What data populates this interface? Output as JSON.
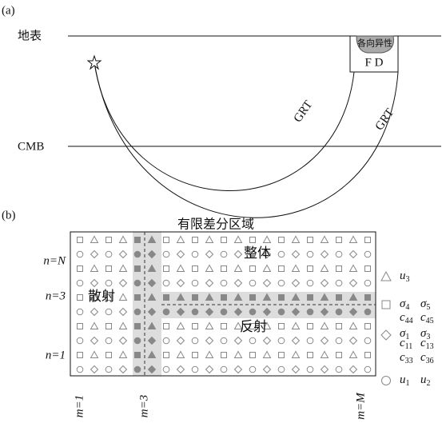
{
  "panel_a": {
    "label": "(a)",
    "surface": "地表",
    "cmb": "CMB",
    "anisotropy": "各向异性",
    "fd": "F D",
    "rays": [
      "GRT",
      "GRT"
    ]
  },
  "panel_b": {
    "label": "(b)",
    "title": "有限差分区域",
    "rows": [
      "n=N",
      "n=3",
      "n=1"
    ],
    "cols": [
      "m=1",
      "m=3",
      "m=M"
    ],
    "regions": [
      "整体",
      "散射",
      "反射"
    ],
    "legend": [
      [
        {
          "base": "u",
          "sub": "3"
        }
      ],
      [
        {
          "base": "σ",
          "sub": "4"
        },
        {
          "base": "σ",
          "sub": "5"
        }
      ],
      [
        {
          "base": "c",
          "sub": "44"
        },
        {
          "base": "c",
          "sub": "45"
        }
      ],
      [
        {
          "base": "σ",
          "sub": "1"
        },
        {
          "base": "σ",
          "sub": "3"
        }
      ],
      [
        {
          "base": "c",
          "sub": "11"
        },
        {
          "base": "c",
          "sub": "13"
        }
      ],
      [
        {
          "base": "c",
          "sub": "33"
        },
        {
          "base": "c",
          "sub": "36"
        }
      ],
      [
        {
          "base": "u",
          "sub": "1"
        },
        {
          "base": "u",
          "sub": "2"
        }
      ]
    ]
  }
}
